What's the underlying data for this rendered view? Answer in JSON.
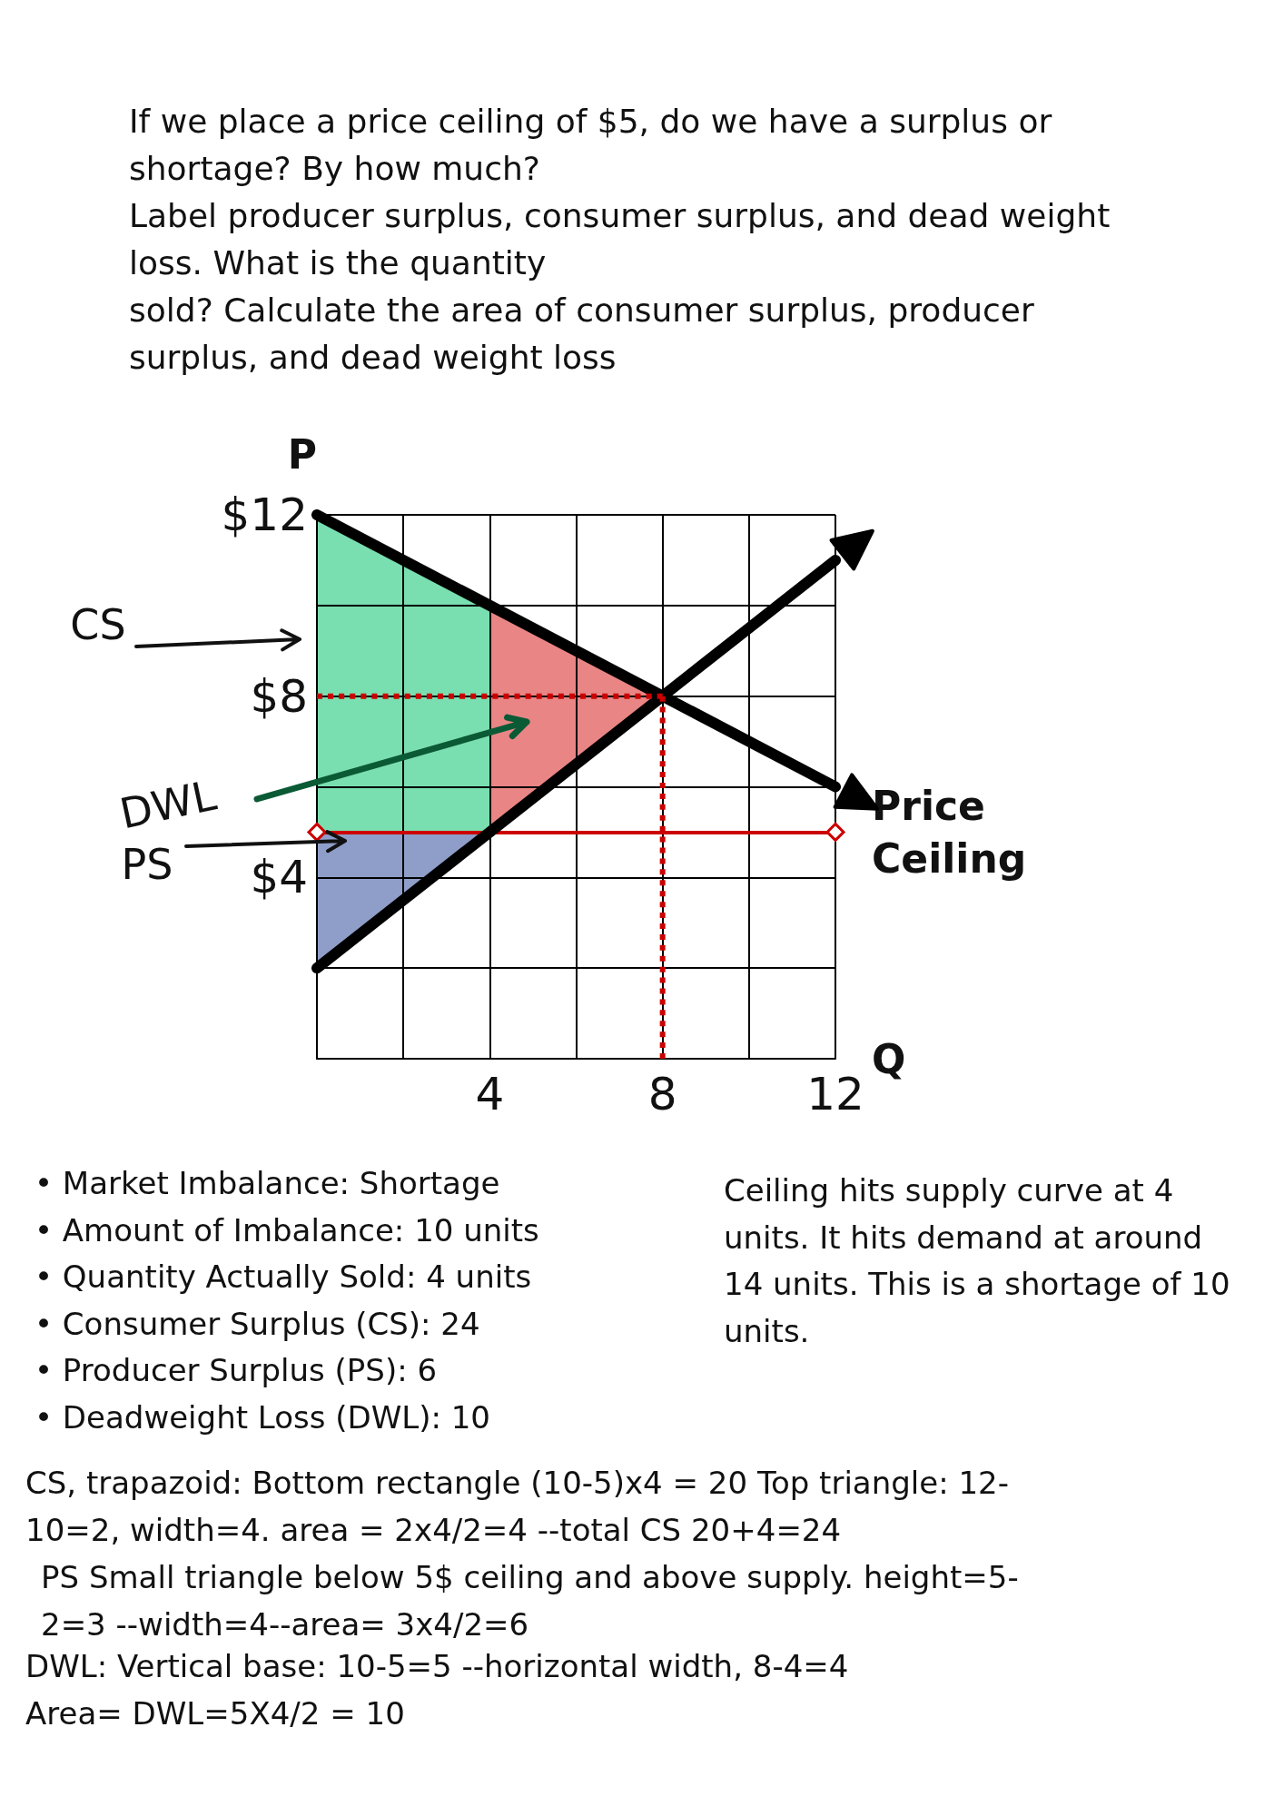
{
  "chart_data": {
    "type": "line",
    "title": "If we place a price ceiling of $5, do we have a surplus or shortage? By how much?\nLabel producer surplus, consumer surplus, and dead weight loss. What is the quantity\nsold? Calculate the area of consumer surplus, producer surplus, and dead weight loss",
    "xlabel": "Q",
    "ylabel": "P",
    "xlim": [
      0,
      12
    ],
    "ylim": [
      0,
      12
    ],
    "xticks": [
      {
        "value": 0,
        "label": null
      },
      {
        "value": 2,
        "label": null
      },
      4,
      {
        "value": 6,
        "label": null
      },
      8,
      {
        "value": 10,
        "label": null
      },
      12
    ],
    "yticks": [
      {
        "value": 0,
        "label": null
      },
      {
        "value": 2,
        "label": null
      },
      {
        "value": 4,
        "label": "$4"
      },
      {
        "value": 6,
        "label": null
      },
      {
        "value": 8,
        "label": "$8"
      },
      {
        "value": 10,
        "label": null
      },
      {
        "value": 12,
        "label": "$12"
      }
    ],
    "grid": true,
    "marker": "none",
    "series": [
      {
        "color": "#000000",
        "x": [
          0,
          8,
          12
        ],
        "values": [
          12,
          8,
          6
        ]
      },
      {
        "color": "#000000",
        "x": [
          0,
          4,
          8,
          12
        ],
        "values": [
          2,
          5,
          8,
          11
        ]
      },
      {
        "color": "#cc0000",
        "line_style": "dotted",
        "x": [
          0,
          8
        ],
        "values": [
          8,
          8
        ]
      },
      {
        "color": "#cc0000",
        "line_style": "dotted",
        "x": [
          8,
          8
        ],
        "values": [
          8,
          0
        ]
      }
    ],
    "ref_lines": [
      {
        "axis": "y",
        "value": 5,
        "label": "Price Ceiling",
        "color": "#cc0000"
      }
    ],
    "annotations": [
      "CS",
      "DWL",
      "PS",
      "• Market Imbalance: Shortage",
      "• Amount of Imbalance: 10 units",
      "• Quantity Actually Sold: 4 units",
      "• Consumer Surplus (CS): 24",
      "• Producer Surplus (PS): 6",
      "• Deadweight Loss (DWL): 10",
      "Ceiling hits supply curve at 4 units. It hits demand at around 14 units. This is a shortage of 10 units.",
      "CS, trapazoid: Bottom rectangle (10-5)x4 = 20 Top triangle: 12-10=2, width=4. area = 2x4/2=4 --total CS 20+4=24",
      "PS Small triangle below 5$ ceiling and above supply. height=5-2=3 --width=4--area= 3x4/2=6",
      "DWL: Vertical base: 10-5=5 --horizontal width, 8-4=4\nArea= DWL=5X4/2 = 10"
    ]
  }
}
